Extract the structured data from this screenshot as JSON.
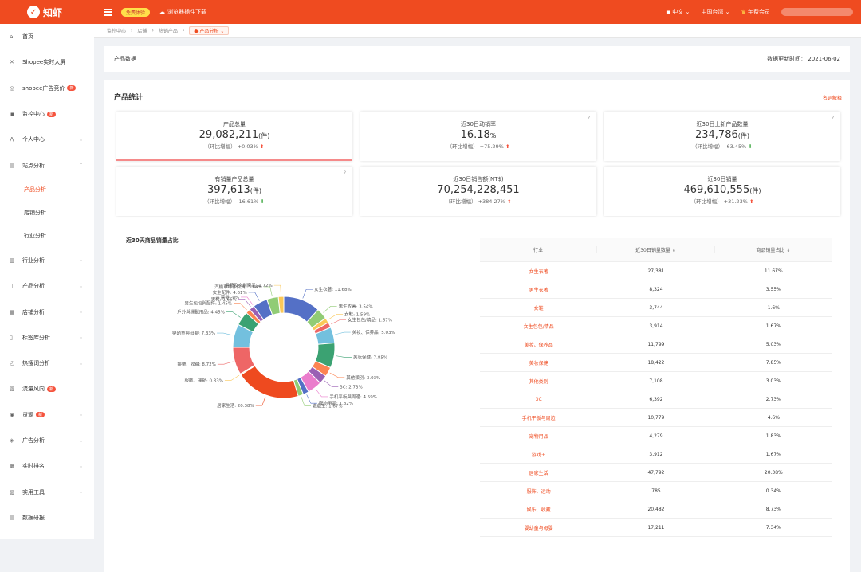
{
  "top": {
    "brand": "知虾",
    "pill": "免费体验",
    "download": "浏览器插件下载",
    "lang": "中文",
    "region": "中国台湾",
    "member": "年费会员"
  },
  "sidebar": {
    "items": [
      {
        "icon": "home-icon",
        "glyph": "⌂",
        "label": "首页"
      },
      {
        "icon": "shopee-icon",
        "glyph": "✕",
        "label": "Shopee实时大屏"
      },
      {
        "icon": "ad-icon",
        "glyph": "◎",
        "label": "shopee广告竞价",
        "badge": "新"
      },
      {
        "icon": "monitor-icon",
        "glyph": "▣",
        "label": "监控中心",
        "badge": "新"
      },
      {
        "icon": "user-icon",
        "glyph": "⋀",
        "label": "个人中心",
        "chev": "⌄"
      },
      {
        "icon": "site-icon",
        "glyph": "▤",
        "label": "站点分析",
        "chev": "⌃"
      }
    ],
    "sub": [
      "产品分析",
      "店铺分析",
      "行业分析"
    ],
    "items2": [
      {
        "icon": "industry-icon",
        "glyph": "▥",
        "label": "行业分析",
        "chev": "⌄"
      },
      {
        "icon": "product-icon",
        "glyph": "◫",
        "label": "产品分析",
        "chev": "⌄"
      },
      {
        "icon": "shop-icon",
        "glyph": "▦",
        "label": "店铺分析",
        "chev": "⌄"
      },
      {
        "icon": "tag-icon",
        "glyph": "▯",
        "label": "标签库分析",
        "chev": "⌄"
      },
      {
        "icon": "hot-icon",
        "glyph": "◴",
        "label": "热搜词分析",
        "chev": "⌄"
      },
      {
        "icon": "flow-icon",
        "glyph": "▧",
        "label": "流量风向",
        "badge": "新"
      },
      {
        "icon": "ship-icon",
        "glyph": "◉",
        "label": "货源",
        "badge": "新",
        "chev": "⌄"
      },
      {
        "icon": "adv-icon",
        "glyph": "◈",
        "label": "广告分析",
        "chev": "⌄"
      },
      {
        "icon": "rank-icon",
        "glyph": "▩",
        "label": "实时排名",
        "chev": "⌄"
      },
      {
        "icon": "tool-icon",
        "glyph": "▨",
        "label": "实用工具",
        "chev": "⌄"
      },
      {
        "icon": "data-icon",
        "glyph": "▤",
        "label": "数据研报"
      }
    ]
  },
  "crumbs": [
    "监控中心",
    "店铺",
    "热销产品",
    "产品分析"
  ],
  "header": {
    "title": "产品数据",
    "updated": "数据更新时间： 2021-06-02"
  },
  "stats": {
    "title": "产品统计",
    "link": "名词解释",
    "cards": [
      {
        "title": "产品总量",
        "value": "29,082,211",
        "unit": "(件)",
        "cmp": "（环比增幅） +0.03%",
        "dir": "up"
      },
      {
        "title": "近30日动销率",
        "value": "16.18",
        "unit": "%",
        "cmp": "（环比增幅） +75.29%",
        "dir": "up",
        "q": "?"
      },
      {
        "title": "近30日上新产品数量",
        "value": "234,786",
        "unit": "(件)",
        "cmp": "（环比增幅） -63.45%",
        "dir": "dn",
        "q": "?"
      },
      {
        "title": "有销量产品总量",
        "value": "397,613",
        "unit": "(件)",
        "cmp": "（环比增幅） -16.61%",
        "dir": "dn",
        "q": "?"
      },
      {
        "title": "近30日销售额(NT$)",
        "value": "70,254,228,451",
        "unit": "",
        "cmp": "（环比增幅） +384.27%",
        "dir": "up"
      },
      {
        "title": "近30日销量",
        "value": "469,610,555",
        "unit": "(件)",
        "cmp": "（环比增幅） +31.23%",
        "dir": "up"
      }
    ]
  },
  "donut_title": "近30天商品销量占比",
  "table": {
    "headers": [
      "行业",
      "近30日销量数量 ⇕",
      "商品销量占比 ⇕"
    ],
    "rows": [
      [
        "女生衣著",
        "27,381",
        "11.67%"
      ],
      [
        "男生衣著",
        "8,324",
        "3.55%"
      ],
      [
        "女鞋",
        "3,744",
        "1.6%"
      ],
      [
        "女生包包/精品",
        "3,914",
        "1.67%"
      ],
      [
        "美妆、保养品",
        "11,799",
        "5.03%"
      ],
      [
        "美妆保健",
        "18,422",
        "7.85%"
      ],
      [
        "其他类别",
        "7,108",
        "3.03%"
      ],
      [
        "3C",
        "6,392",
        "2.73%"
      ],
      [
        "手机平板与周边",
        "10,779",
        "4.6%"
      ],
      [
        "宠物用品",
        "4,279",
        "1.83%"
      ],
      [
        "游戏王",
        "3,912",
        "1.67%"
      ],
      [
        "居家生活",
        "47,792",
        "20.38%"
      ],
      [
        "服饰、运动",
        "785",
        "0.34%"
      ],
      [
        "娱乐、收藏",
        "20,482",
        "8.73%"
      ],
      [
        "婴幼童与母婴",
        "17,211",
        "7.34%"
      ]
    ]
  },
  "chart_data": {
    "type": "pie",
    "title": "近30天商品销量占比",
    "labels": [
      "女生衣著",
      "男生衣著",
      "女鞋",
      "女生包包/精品",
      "美妆、保养品",
      "美妆保健",
      "其他类别",
      "3C",
      "手机平板与周边",
      "宠物用品",
      "游戏王",
      "居家生活",
      "服饰、運動",
      "娱乐、收藏",
      "婴幼童与母婴",
      "户外与运动用品",
      "男生包包与配件",
      "男鞋",
      "票劵",
      "女生配件",
      "汽机车零件百货",
      "书籍及文创商品"
    ],
    "values": [
      11.68,
      3.54,
      1.59,
      1.67,
      5.03,
      7.85,
      3.03,
      2.73,
      4.59,
      1.82,
      1.67,
      20.38,
      0.33,
      8.72,
      7.33,
      4.45,
      1.45,
      1.66,
      0,
      4.61,
      3.64,
      1.72
    ],
    "label_texts": [
      "女生衣著: 11.68%",
      "男生衣著: 3.54%",
      "女鞋: 1.59%",
      "女生包包/精品: 1.67%",
      "美妆、保养品: 5.03%",
      "美妆保健: 7.85%",
      "其他類別: 3.03%",
      "3C: 2.73%",
      "手机平板與周邊: 4.59%",
      "寵物用品: 1.82%",
      "遊戲王: 1.67%",
      "居家生活: 20.38%",
      "服飾、運動: 0.33%",
      "娛樂、收藏: 8.72%",
      "嬰幼童與母嬰: 7.33%",
      "戶外與運動用品: 4.45%",
      "男生包包與配件: 1.45%",
      "男鞋: 1.66%",
      "票劵: 0%",
      "女生配件: 4.61%",
      "汽機車零件百貨: 3.64%",
      "書籍及文創商品: 1.72%"
    ],
    "colors": [
      "#5470c6",
      "#91cc75",
      "#fac858",
      "#ee6666",
      "#73c0de",
      "#3ba272",
      "#fc8452",
      "#9a60b4",
      "#ea7ccc",
      "#5470c6",
      "#91cc75",
      "#ee4a1f",
      "#fac858",
      "#ee6666",
      "#73c0de",
      "#3ba272",
      "#fc8452",
      "#9a60b4",
      "#ea7ccc",
      "#5470c6",
      "#91cc75",
      "#fac858"
    ]
  }
}
